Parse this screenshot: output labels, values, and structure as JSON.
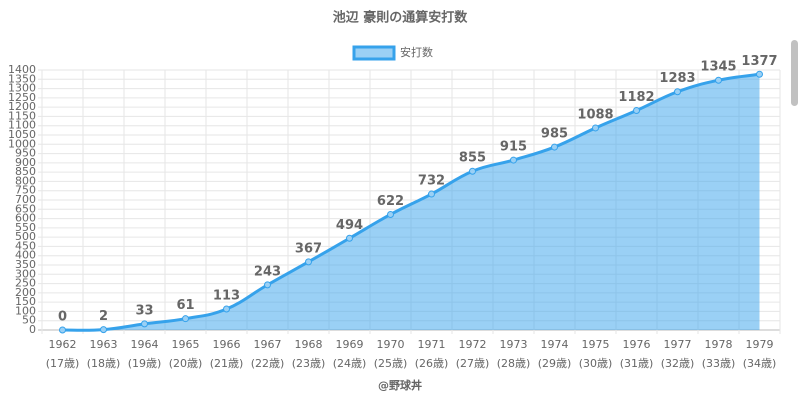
{
  "chart_data": {
    "type": "area",
    "title": "池辺 豪則の通算安打数",
    "categories": [
      "1962",
      "1963",
      "1964",
      "1965",
      "1966",
      "1967",
      "1968",
      "1969",
      "1970",
      "1971",
      "1972",
      "1973",
      "1974",
      "1975",
      "1976",
      "1977",
      "1978",
      "1979"
    ],
    "category_sublabels": [
      "(17歳)",
      "(18歳)",
      "(19歳)",
      "(20歳)",
      "(21歳)",
      "(22歳)",
      "(23歳)",
      "(24歳)",
      "(25歳)",
      "(26歳)",
      "(27歳)",
      "(28歳)",
      "(29歳)",
      "(30歳)",
      "(31歳)",
      "(32歳)",
      "(33歳)",
      "(34歳)"
    ],
    "series": [
      {
        "name": "安打数",
        "color": "#36a2eb",
        "fill": "rgba(54,162,235,0.5)",
        "values": [
          0,
          2,
          33,
          61,
          113,
          243,
          367,
          494,
          622,
          732,
          855,
          915,
          985,
          1088,
          1182,
          1283,
          1345,
          1377
        ]
      }
    ],
    "ylim": [
      0,
      1400
    ],
    "yticks": [
      0,
      50,
      100,
      150,
      200,
      250,
      300,
      350,
      400,
      450,
      500,
      550,
      600,
      650,
      700,
      750,
      800,
      850,
      900,
      950,
      1000,
      1050,
      1100,
      1150,
      1200,
      1250,
      1300,
      1350,
      1400
    ],
    "grid": true,
    "legend": "top",
    "footer": "@野球丼"
  }
}
